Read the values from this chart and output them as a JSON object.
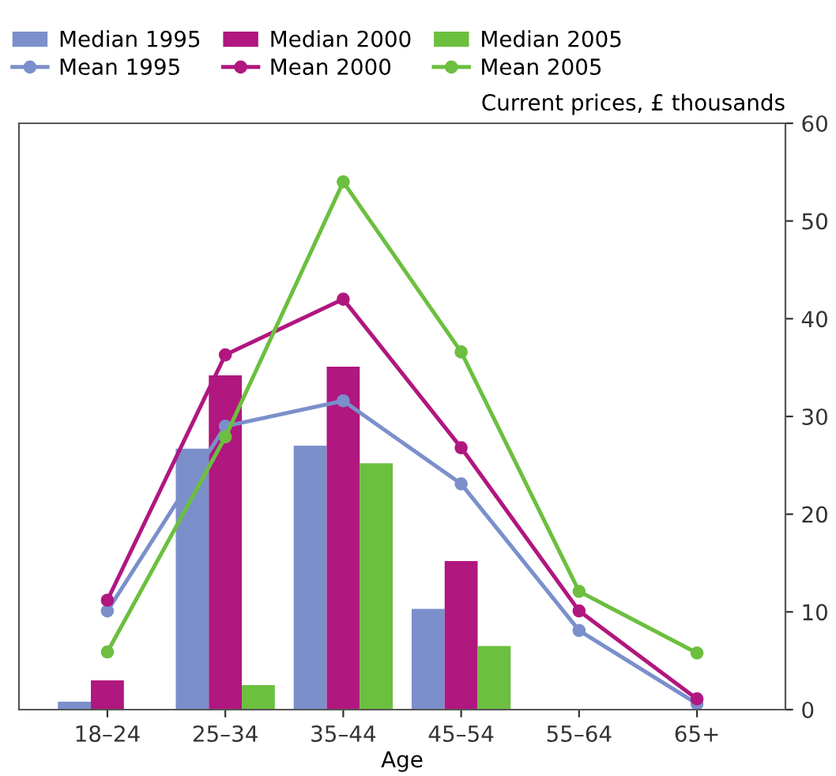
{
  "chart_data": {
    "type": "bar",
    "xlabel": "Age",
    "ylabel": "Current prices, £ thousands",
    "categories": [
      "18–24",
      "25–34",
      "35–44",
      "45–54",
      "55–64",
      "65+"
    ],
    "series": [
      {
        "name": "Median 1995",
        "color": "#7b8fcb",
        "values": [
          0.8,
          26.7,
          27.0,
          10.3,
          null,
          null
        ]
      },
      {
        "name": "Median 2000",
        "color": "#b0177f",
        "values": [
          3.0,
          34.2,
          35.1,
          15.2,
          null,
          null
        ]
      },
      {
        "name": "Median 2005",
        "color": "#6cbf3f",
        "values": [
          null,
          2.5,
          25.2,
          6.5,
          null,
          null
        ]
      },
      {
        "name": "Mean 1995",
        "type": "line",
        "color": "#7b8fcb",
        "values": [
          10.1,
          29.0,
          31.6,
          23.1,
          8.1,
          0.6
        ]
      },
      {
        "name": "Mean 2000",
        "type": "line",
        "color": "#b0177f",
        "values": [
          11.2,
          36.3,
          42.0,
          26.8,
          10.1,
          1.1
        ]
      },
      {
        "name": "Mean 2005",
        "type": "line",
        "color": "#6cbf3f",
        "values": [
          5.9,
          27.9,
          54.0,
          36.6,
          12.1,
          5.8
        ]
      }
    ],
    "ylim": [
      0,
      60
    ],
    "yticks": [
      0,
      10,
      20,
      30,
      40,
      50,
      60
    ],
    "grid": false,
    "legend": "top",
    "marker": "circle",
    "line_style": "solid"
  }
}
